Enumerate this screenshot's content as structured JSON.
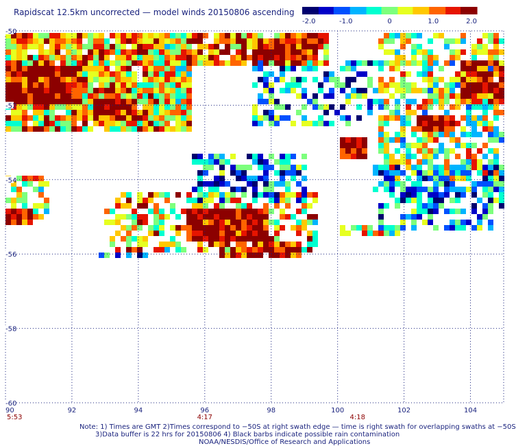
{
  "title": "Rapidscat 12.5km uncorrected — model winds 20150806 ascending",
  "colorbar": {
    "ticks": [
      "-2.0",
      "-1.0",
      "0",
      "1.0",
      "2.0"
    ],
    "tick_values": [
      -2.0,
      -1.0,
      0,
      1.0,
      2.0
    ],
    "range": [
      -2.0,
      2.0
    ],
    "colors": [
      "#00006e",
      "#0000c8",
      "#0050ff",
      "#00b4ff",
      "#00ffd0",
      "#7dff7d",
      "#e6ff20",
      "#ffc800",
      "#ff6400",
      "#e61400",
      "#8c0000"
    ]
  },
  "map": {
    "lon_range": [
      90,
      105
    ],
    "lat_range": [
      -60,
      -50
    ],
    "lon_labels": [
      "90",
      "92",
      "94",
      "96",
      "98",
      "100",
      "102",
      "104"
    ],
    "lon_values": [
      90,
      92,
      94,
      96,
      98,
      100,
      102,
      104
    ],
    "lat_labels": [
      "-50",
      "-52",
      "-54",
      "-56",
      "-58",
      "-60"
    ],
    "lat_values": [
      -50,
      -52,
      -54,
      -56,
      -58,
      -60
    ],
    "times": [
      {
        "label": "5:53",
        "lon": 90
      },
      {
        "label": "4:17",
        "lon": 96
      },
      {
        "label": "4:18",
        "lon": 100.6
      }
    ],
    "gridline_color": "#1a237e",
    "time_color": "#8c0000",
    "regions": [
      {
        "lon": [
          90.0,
          95.6
        ],
        "lat": [
          -52.7,
          -50.0
        ],
        "mean": 0.8,
        "density": 0.93
      },
      {
        "lon": [
          90.0,
          92.3
        ],
        "lat": [
          -51.9,
          -51.0
        ],
        "mean": 2.0,
        "density": 1.0
      },
      {
        "lon": [
          92.6,
          93.8
        ],
        "lat": [
          -52.4,
          -51.9
        ],
        "mean": 1.8,
        "density": 1.0
      },
      {
        "lon": [
          94.1,
          95.6
        ],
        "lat": [
          -52.0,
          -50.0
        ],
        "mean": 0.4,
        "density": 0.55
      },
      {
        "lon": [
          95.5,
          99.6
        ],
        "lat": [
          -50.8,
          -50.0
        ],
        "mean": 1.2,
        "density": 0.8
      },
      {
        "lon": [
          97.4,
          99.4
        ],
        "lat": [
          -50.9,
          -50.2
        ],
        "mean": 2.0,
        "density": 1.0
      },
      {
        "lon": [
          97.5,
          101.2
        ],
        "lat": [
          -52.5,
          -50.8
        ],
        "mean": -0.8,
        "density": 0.5
      },
      {
        "lon": [
          100.0,
          100.8
        ],
        "lat": [
          -53.4,
          -52.8
        ],
        "mean": 2.0,
        "density": 1.0
      },
      {
        "lon": [
          101.3,
          105.0
        ],
        "lat": [
          -53.9,
          -50.0
        ],
        "mean": 0.2,
        "density": 0.62
      },
      {
        "lon": [
          102.3,
          103.5
        ],
        "lat": [
          -52.7,
          -52.2
        ],
        "mean": 2.0,
        "density": 1.0
      },
      {
        "lon": [
          103.7,
          105.0
        ],
        "lat": [
          -51.9,
          -50.8
        ],
        "mean": 1.6,
        "density": 0.9
      },
      {
        "lon": [
          101.0,
          105.0
        ],
        "lat": [
          -54.7,
          -53.6
        ],
        "mean": -0.8,
        "density": 0.6
      },
      {
        "lon": [
          101.2,
          104.6
        ],
        "lat": [
          -55.3,
          -54.7
        ],
        "mean": -0.6,
        "density": 0.55
      },
      {
        "lon": [
          95.6,
          99.0
        ],
        "lat": [
          -54.6,
          -53.3
        ],
        "mean": -0.9,
        "density": 0.6
      },
      {
        "lon": [
          93.0,
          99.3
        ],
        "lat": [
          -55.9,
          -54.4
        ],
        "mean": 0.6,
        "density": 0.55
      },
      {
        "lon": [
          95.5,
          97.8
        ],
        "lat": [
          -55.6,
          -54.8
        ],
        "mean": 2.0,
        "density": 1.0
      },
      {
        "lon": [
          96.5,
          98.9
        ],
        "lat": [
          -56.0,
          -55.6
        ],
        "mean": 1.8,
        "density": 0.9
      },
      {
        "lon": [
          90.0,
          91.3
        ],
        "lat": [
          -55.0,
          -53.9
        ],
        "mean": 0.3,
        "density": 0.6
      },
      {
        "lon": [
          90.0,
          90.7
        ],
        "lat": [
          -55.2,
          -54.8
        ],
        "mean": 2.0,
        "density": 1.0
      },
      {
        "lon": [
          92.6,
          94.2
        ],
        "lat": [
          -56.1,
          -55.9
        ],
        "mean": -1.2,
        "density": 0.55
      },
      {
        "lon": [
          100.0,
          101.8
        ],
        "lat": [
          -55.5,
          -55.2
        ],
        "mean": 0.5,
        "density": 0.7
      }
    ]
  },
  "notes": [
    "Note: 1) Times are GMT 2)Times correspond to −50S at right swath edge — time is right swath for overlapping swaths at −50S",
    "3)Data buffer is 22 hrs for 20150806 4) Black barbs indicate possible rain contamination",
    "NOAA/NESDIS/Office of Research and Applications"
  ]
}
